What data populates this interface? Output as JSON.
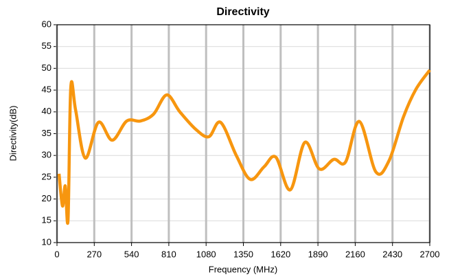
{
  "chart_data": {
    "type": "line",
    "title": "Directivity",
    "x_label": "Frequency (MHz)",
    "y_label": "Directivity(dB)",
    "x": [
      15,
      40,
      60,
      80,
      100,
      135,
      205,
      300,
      400,
      505,
      605,
      700,
      795,
      890,
      1005,
      1100,
      1185,
      1300,
      1400,
      1500,
      1585,
      1690,
      1795,
      1900,
      2005,
      2090,
      2190,
      2310,
      2405,
      2510,
      2600,
      2700
    ],
    "series": [
      {
        "name": "Directivity",
        "color": "#f7960f",
        "values": [
          25.8,
          18.4,
          23,
          15.2,
          45.6,
          40.4,
          29.4,
          37.6,
          33.5,
          37.9,
          37.9,
          39.5,
          43.9,
          40,
          36,
          34.3,
          37.6,
          29.9,
          24.5,
          27.4,
          29.6,
          22.1,
          33,
          26.9,
          29.1,
          28.5,
          37.8,
          26.2,
          28.8,
          38.9,
          45.2,
          49.6
        ]
      }
    ],
    "xlim": [
      0,
      2700
    ],
    "xticks": [
      0,
      270,
      540,
      810,
      1080,
      1350,
      1620,
      1890,
      2160,
      2430,
      2700
    ],
    "ylim": [
      10,
      60
    ],
    "yticks": [
      10,
      15,
      20,
      25,
      30,
      35,
      40,
      45,
      50,
      55,
      60
    ],
    "grid": true
  }
}
